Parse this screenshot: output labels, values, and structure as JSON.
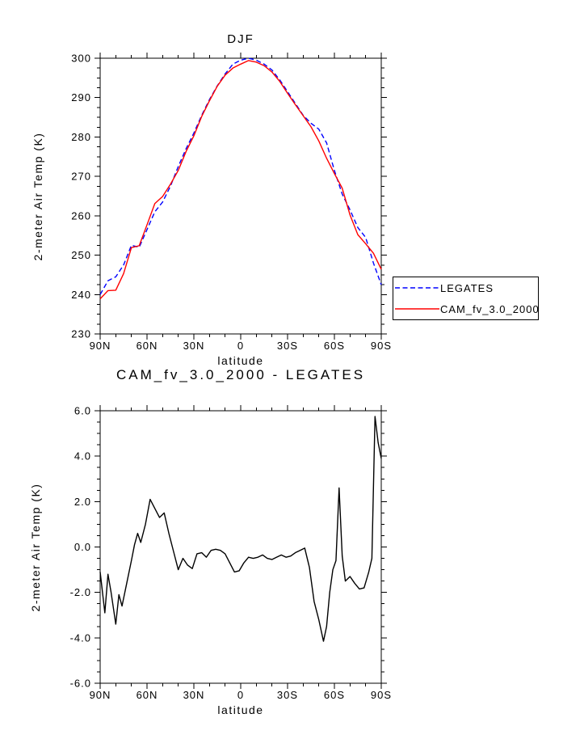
{
  "chart_data": [
    {
      "type": "line",
      "title": "DJF",
      "xlabel": "latitude",
      "ylabel": "2-meter Air Temp (K)",
      "grid": false,
      "legend_position": "outside-right-bottom",
      "xaxis": {
        "min": 90,
        "max": -90,
        "major_ticks": [
          90,
          60,
          30,
          0,
          -30,
          -60,
          -90
        ],
        "tick_labels": [
          "90N",
          "60N",
          "30N",
          "0",
          "30S",
          "60S",
          "90S"
        ],
        "minor_step": 10
      },
      "yaxis": {
        "min": 230,
        "max": 300,
        "major_ticks": [
          230,
          240,
          250,
          260,
          270,
          280,
          290,
          300
        ],
        "tick_labels": [
          "230",
          "240",
          "250",
          "260",
          "270",
          "280",
          "290",
          "300"
        ],
        "minor_step": 2.5
      },
      "x": [
        90,
        85,
        80,
        75,
        70,
        65,
        60,
        55,
        50,
        45,
        40,
        35,
        30,
        25,
        20,
        15,
        10,
        5,
        0,
        -5,
        -10,
        -15,
        -20,
        -25,
        -30,
        -35,
        -40,
        -45,
        -50,
        -55,
        -60,
        -65,
        -70,
        -75,
        -80,
        -85,
        -90
      ],
      "series": [
        {
          "id": "legates",
          "name": "LEGATES",
          "color": "#0000ff",
          "style": "dashed",
          "values": [
            240.0,
            243.5,
            244.5,
            247.5,
            252.5,
            252.0,
            256.5,
            261.0,
            263.5,
            267.5,
            272.5,
            277.0,
            281.0,
            285.5,
            289.5,
            293.0,
            296.0,
            298.5,
            299.5,
            300.0,
            299.5,
            298.5,
            297.0,
            294.5,
            291.5,
            288.5,
            285.5,
            283.5,
            282.0,
            278.5,
            271.5,
            265.5,
            261.5,
            257.0,
            254.5,
            248.0,
            242.5
          ]
        },
        {
          "id": "cam-fv-3-0-2000",
          "name": "CAM_fv_3.0_2000",
          "color": "#ff0000",
          "style": "solid",
          "values": [
            238.9,
            241.0,
            241.1,
            245.3,
            251.9,
            252.4,
            257.7,
            263.1,
            264.9,
            268.0,
            271.5,
            276.3,
            280.3,
            285.2,
            289.2,
            292.9,
            295.7,
            297.5,
            298.5,
            299.4,
            299.0,
            298.1,
            296.5,
            294.1,
            291.1,
            288.2,
            285.4,
            282.6,
            279.0,
            274.6,
            270.7,
            267.0,
            260.2,
            255.2,
            252.9,
            250.5,
            246.4
          ]
        }
      ]
    },
    {
      "type": "line",
      "title": "CAM_fv_3.0_2000 - LEGATES",
      "xlabel": "latitude",
      "ylabel": "2-meter Air Temp (K)",
      "grid": false,
      "legend_position": "none",
      "xaxis": {
        "min": 90,
        "max": -90,
        "major_ticks": [
          90,
          60,
          30,
          0,
          -30,
          -60,
          -90
        ],
        "tick_labels": [
          "90N",
          "60N",
          "30N",
          "0",
          "30S",
          "60S",
          "90S"
        ],
        "minor_step": 10
      },
      "yaxis": {
        "min": -6.0,
        "max": 6.0,
        "major_ticks": [
          -6,
          -4,
          -2,
          0,
          2,
          4,
          6
        ],
        "tick_labels": [
          "-6.0",
          "-4.0",
          "-2.0",
          "0.0",
          "2.0",
          "4.0",
          "6.0"
        ],
        "minor_step": 0.5
      },
      "x": [
        90,
        87,
        85,
        83,
        80,
        78,
        76,
        73,
        70,
        68,
        66,
        64,
        61,
        58,
        55,
        52,
        49,
        46,
        43,
        40,
        37,
        34,
        31,
        28,
        25,
        22,
        19,
        16,
        13,
        10,
        7,
        4,
        1,
        -2,
        -5,
        -8,
        -11,
        -14,
        -17,
        -20,
        -23,
        -26,
        -29,
        -32,
        -35,
        -38,
        -41,
        -44,
        -47,
        -50,
        -53,
        -55,
        -57,
        -59,
        -61,
        -63,
        -65,
        -67,
        -70,
        -73,
        -76,
        -79,
        -82,
        -84,
        -86,
        -88,
        -90
      ],
      "series": [
        {
          "id": "difference",
          "name": "CAM_fv_3.0_2000 - LEGATES",
          "color": "#000000",
          "style": "solid",
          "values": [
            -1.1,
            -2.9,
            -1.2,
            -2.0,
            -3.4,
            -2.1,
            -2.6,
            -1.6,
            -0.6,
            0.1,
            0.6,
            0.2,
            1.0,
            2.1,
            1.7,
            1.3,
            1.5,
            0.6,
            -0.2,
            -1.0,
            -0.5,
            -0.8,
            -0.95,
            -0.3,
            -0.25,
            -0.45,
            -0.15,
            -0.1,
            -0.15,
            -0.3,
            -0.7,
            -1.1,
            -1.05,
            -0.7,
            -0.45,
            -0.5,
            -0.45,
            -0.35,
            -0.5,
            -0.55,
            -0.45,
            -0.35,
            -0.45,
            -0.4,
            -0.25,
            -0.15,
            -0.05,
            -0.9,
            -2.4,
            -3.2,
            -4.15,
            -3.5,
            -2.0,
            -1.0,
            -0.6,
            2.6,
            -0.4,
            -1.5,
            -1.3,
            -1.6,
            -1.85,
            -1.8,
            -1.1,
            -0.5,
            5.75,
            4.6,
            3.9
          ]
        }
      ]
    }
  ]
}
